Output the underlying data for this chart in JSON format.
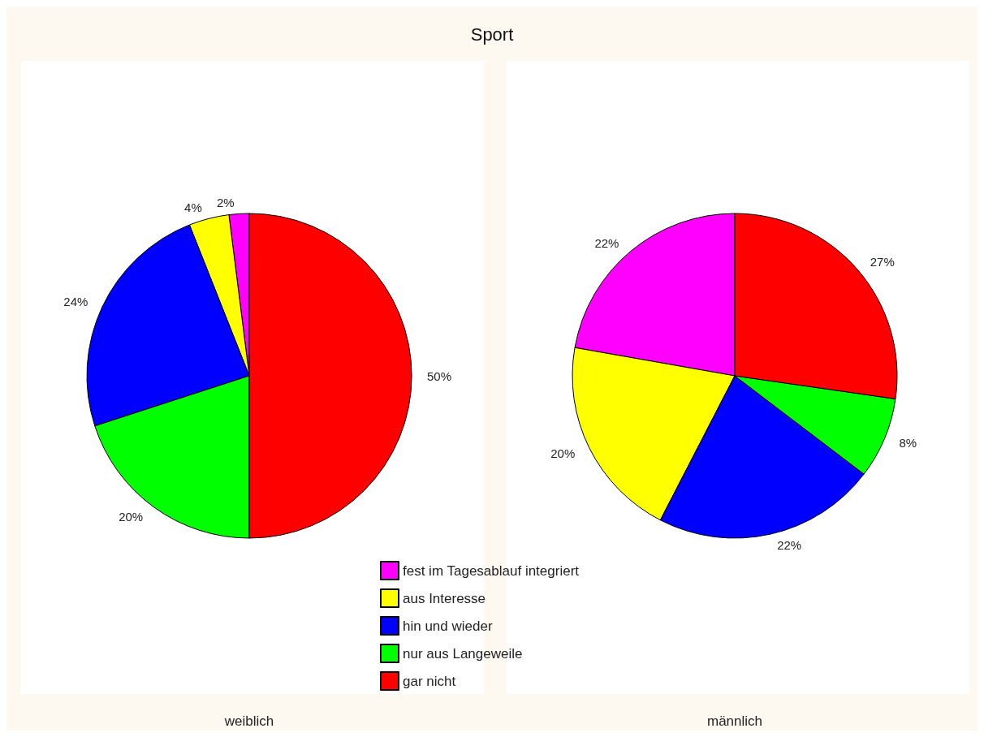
{
  "chart_data": {
    "type": "pie",
    "title": "Sport",
    "categories": [
      "fest im Tagesablauf integriert",
      "aus Interesse",
      "hin und wieder",
      "nur aus Langeweile",
      "gar nicht"
    ],
    "colors": [
      "#ff00ff",
      "#ffff00",
      "#0000ff",
      "#00ff00",
      "#ff0000"
    ],
    "series": [
      {
        "name": "weiblich",
        "values": [
          2,
          4,
          24,
          20,
          50
        ],
        "value_labels": [
          "2%",
          "4%",
          "24%",
          "20%",
          "50%"
        ]
      },
      {
        "name": "männlich",
        "values": [
          22,
          20,
          22,
          8,
          27
        ],
        "value_labels": [
          "22%",
          "20%",
          "22%",
          "8%",
          "27%"
        ]
      }
    ],
    "legend": "bottom"
  }
}
